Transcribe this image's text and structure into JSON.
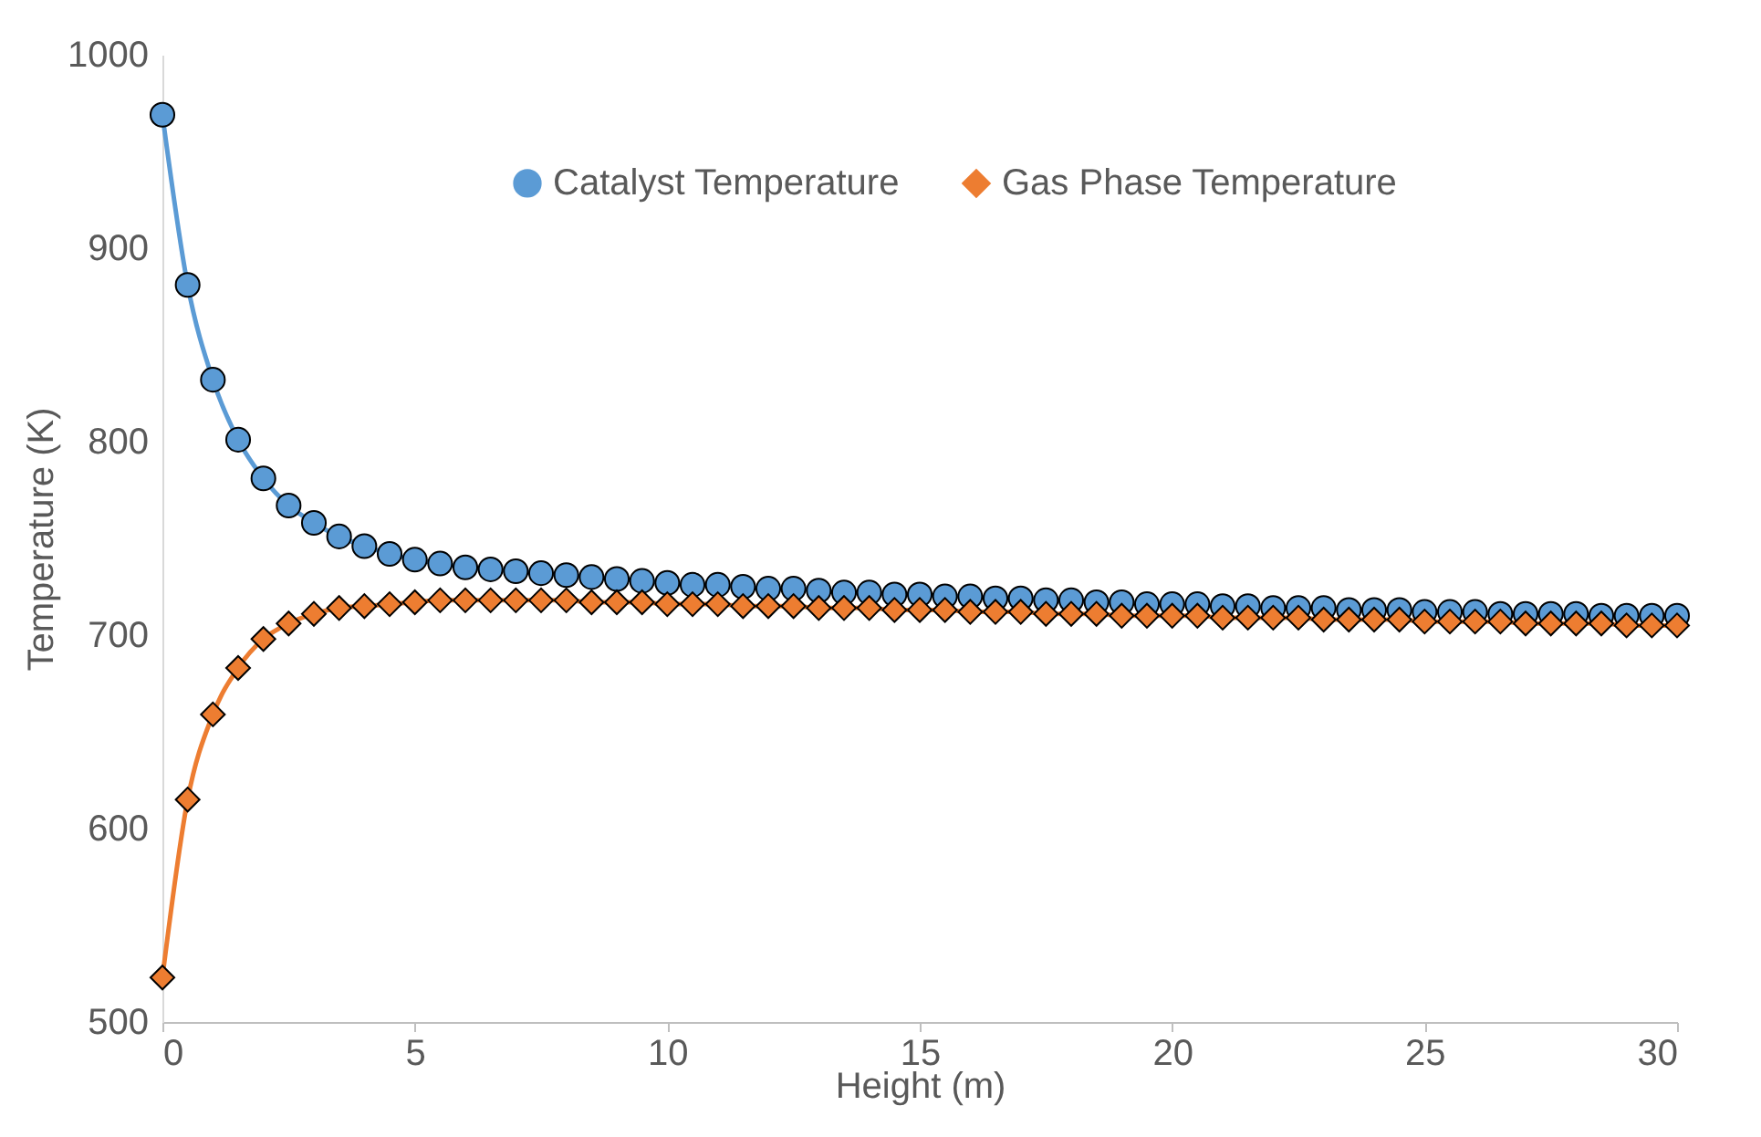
{
  "chart_data": {
    "type": "line",
    "xlabel": "Height (m)",
    "ylabel": "Temperature (K)",
    "x": [
      0,
      0.5,
      1,
      1.5,
      2,
      2.5,
      3,
      3.5,
      4,
      4.5,
      5,
      5.5,
      6,
      6.5,
      7,
      7.5,
      8,
      8.5,
      9,
      9.5,
      10,
      10.5,
      11,
      11.5,
      12,
      12.5,
      13,
      13.5,
      14,
      14.5,
      15,
      15.5,
      16,
      16.5,
      17,
      17.5,
      18,
      18.5,
      19,
      19.5,
      20,
      20.5,
      21,
      21.5,
      22,
      22.5,
      23,
      23.5,
      24,
      24.5,
      25,
      25.5,
      26,
      26.5,
      27,
      27.5,
      28,
      28.5,
      29,
      29.5,
      30
    ],
    "series": [
      {
        "name": "Catalyst Temperature",
        "color": "#5b9bd5",
        "marker": "circle",
        "values": [
          969,
          881,
          832,
          801,
          781,
          767,
          758,
          751,
          746,
          742,
          739,
          737,
          735,
          734,
          733,
          732,
          731,
          730,
          729,
          728,
          727,
          726,
          726,
          725,
          724,
          724,
          723,
          722,
          722,
          721,
          721,
          720,
          720,
          719,
          719,
          718,
          718,
          717,
          717,
          716,
          716,
          716,
          715,
          715,
          714,
          714,
          714,
          713,
          713,
          713,
          712,
          712,
          712,
          711,
          711,
          711,
          711,
          710,
          710,
          710,
          710
        ]
      },
      {
        "name": "Gas Phase Temperature",
        "color": "#ed7d31",
        "marker": "diamond",
        "values": [
          523,
          615,
          659,
          683,
          698,
          706,
          711,
          714,
          715,
          716,
          717,
          718,
          718,
          718,
          718,
          718,
          718,
          717,
          717,
          717,
          716,
          716,
          716,
          715,
          715,
          715,
          714,
          714,
          714,
          713,
          713,
          713,
          712,
          712,
          712,
          711,
          711,
          711,
          710,
          710,
          710,
          710,
          709,
          709,
          709,
          709,
          708,
          708,
          708,
          708,
          707,
          707,
          707,
          707,
          706,
          706,
          706,
          706,
          705,
          705,
          705
        ]
      }
    ],
    "xlim": [
      0,
      30
    ],
    "xticks": [
      0,
      5,
      10,
      15,
      20,
      25,
      30
    ],
    "ylim": [
      500,
      1000
    ],
    "yticks": [
      500,
      600,
      700,
      800,
      900,
      1000
    ],
    "grid": false,
    "legend": "top",
    "line_style": "solid"
  }
}
